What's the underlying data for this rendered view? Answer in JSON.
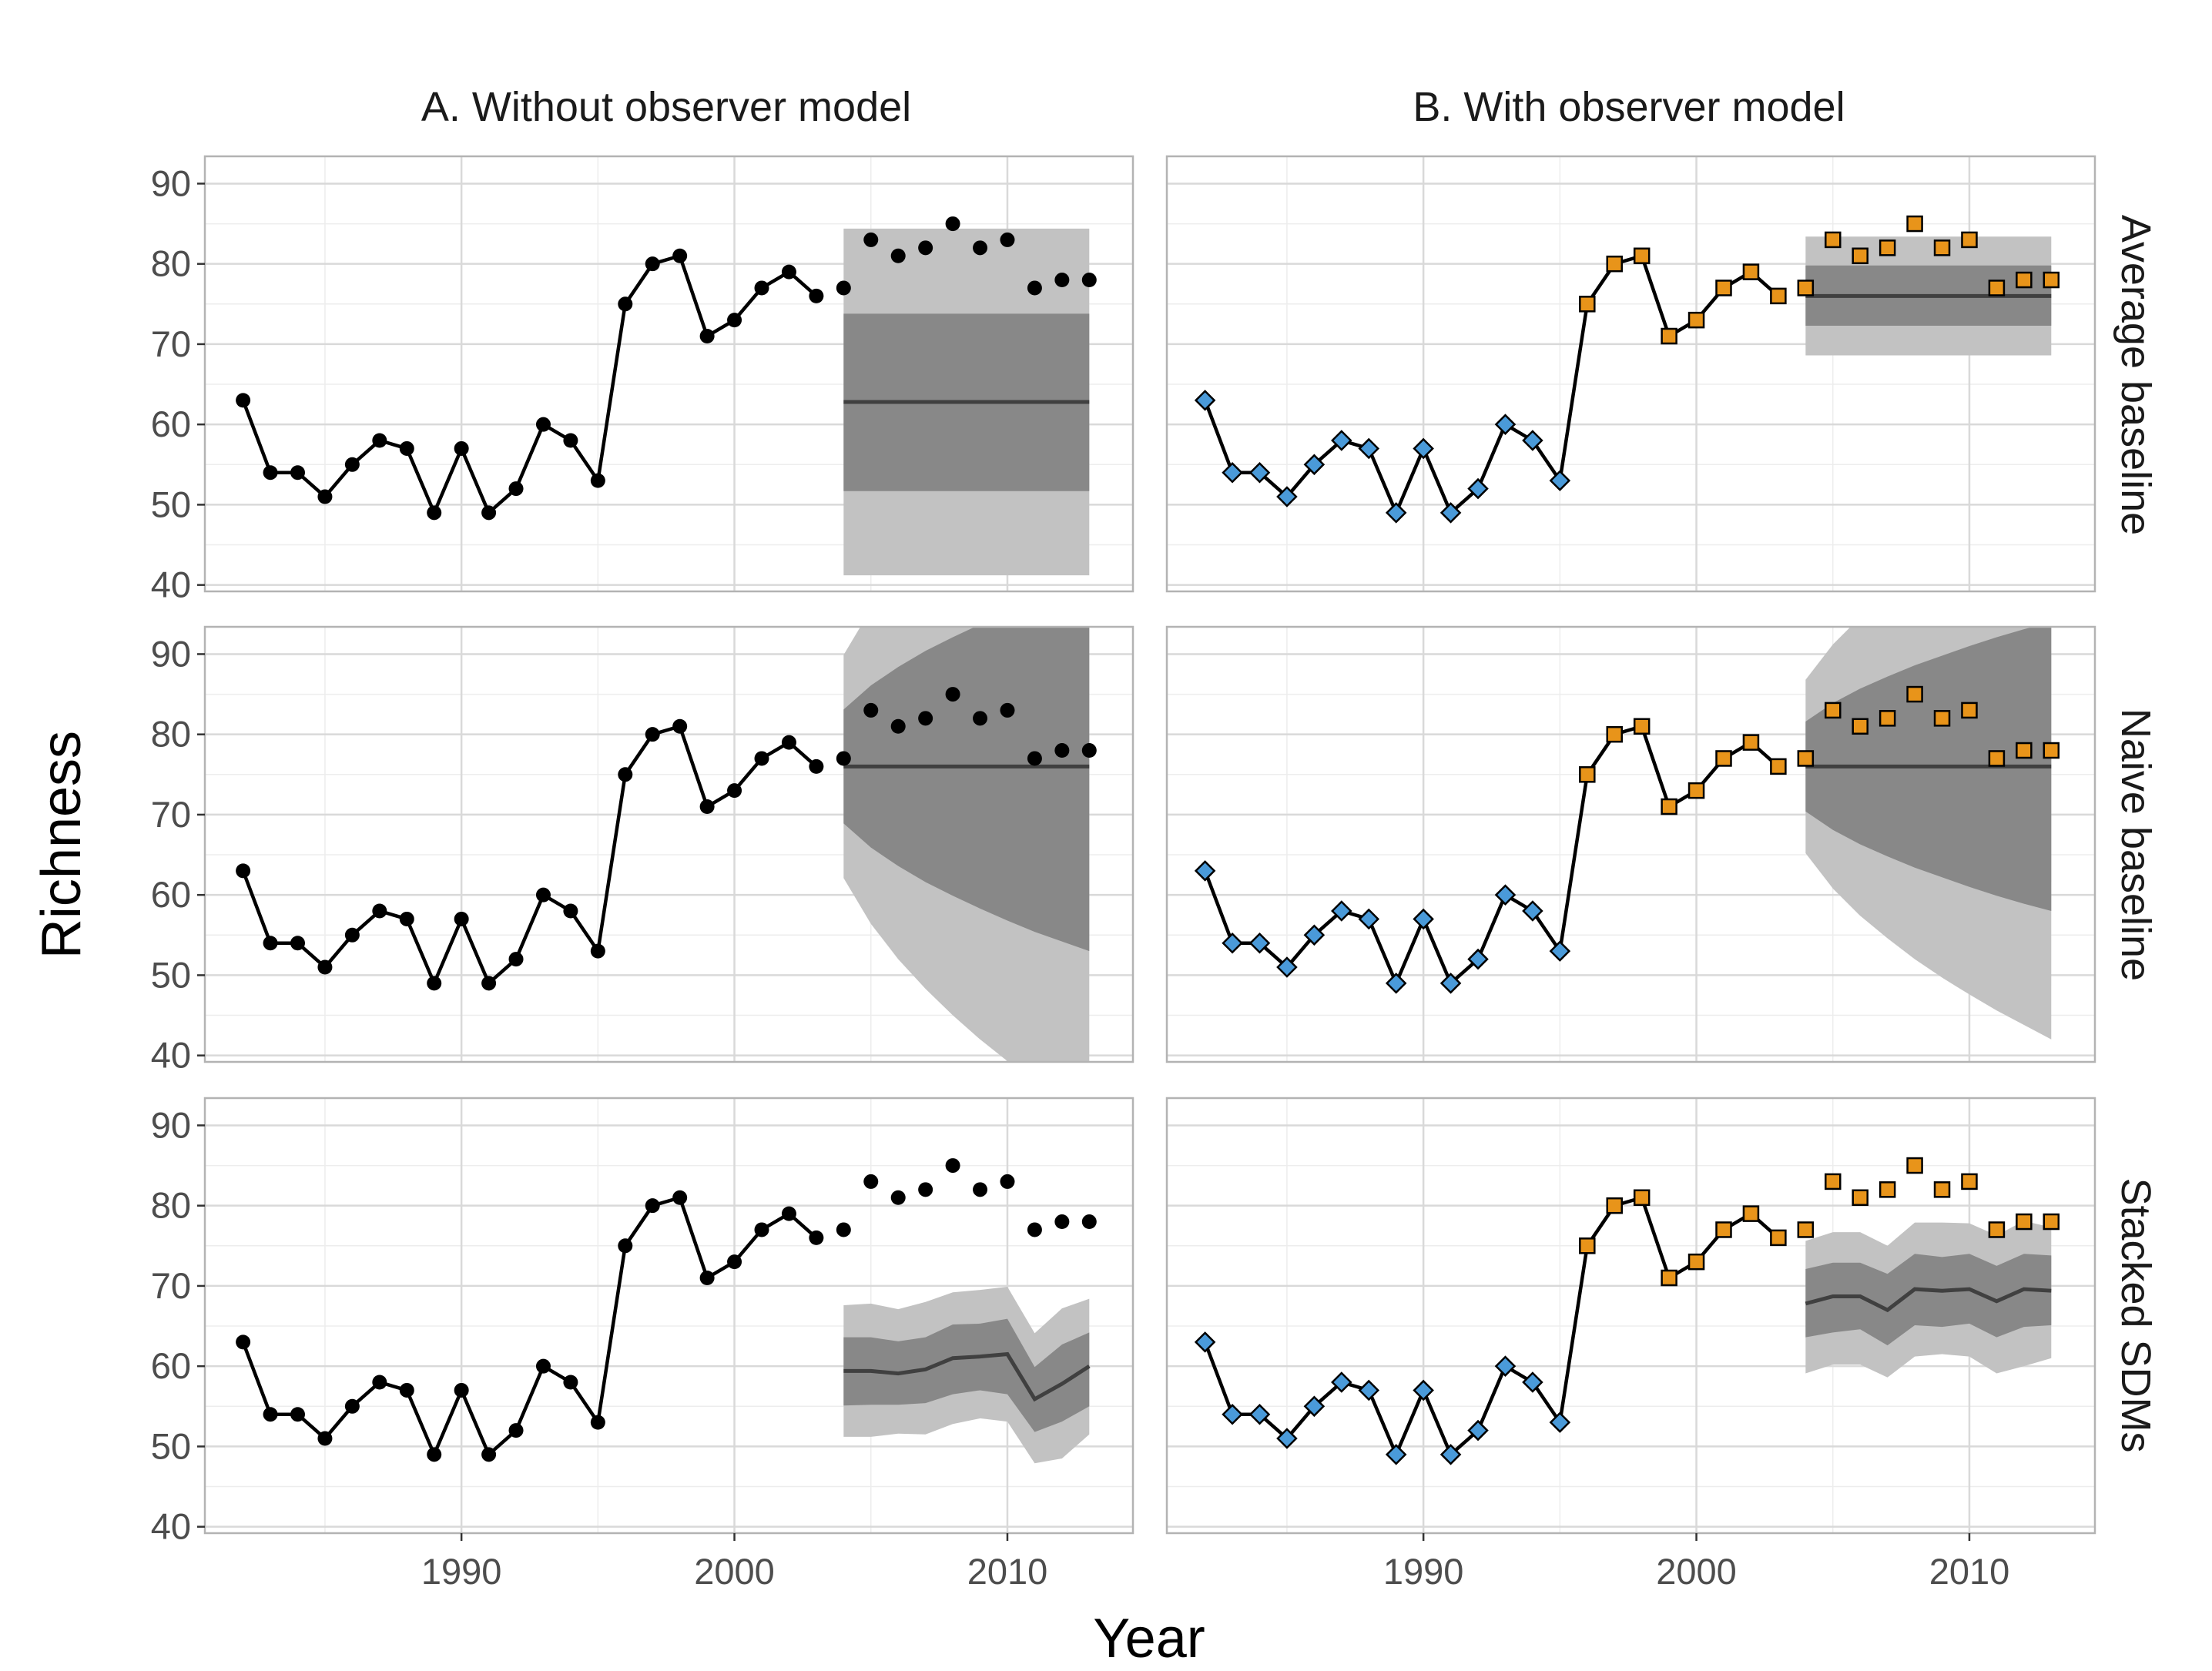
{
  "colors": {
    "band_outer": "#c2c2c2",
    "band_inner": "#888888",
    "median_line": "#404040",
    "line": "#000000",
    "panel_border": "#b3b3b3",
    "grid_major": "#d9d9d9",
    "grid_minor": "#ededed",
    "before_point": "#4a9ad9",
    "after_point": "#e8941a",
    "point_plain": "#000000"
  },
  "labels": {
    "col_a": "A. Without observer model",
    "col_b": "B. With observer model",
    "row_1": "Average baseline",
    "row_2": "Naive baseline",
    "row_3": "Stacked SDMs",
    "xlabel": "Year",
    "ylabel": "Richness"
  },
  "chart_data": {
    "type": "line",
    "layout": "facet-grid-3x2",
    "xlabel": "Year",
    "ylabel": "Richness",
    "xlim": [
      1980.6,
      2014.6
    ],
    "ylim": [
      39.2,
      93.4
    ],
    "x_ticks": [
      1990,
      2000,
      2010
    ],
    "y_ticks": [
      40,
      50,
      60,
      70,
      80,
      90
    ],
    "grid": true,
    "columns": [
      "A. Without observer model",
      "B. With observer model"
    ],
    "rows": [
      "Average baseline",
      "Naive baseline",
      "Stacked SDMs"
    ],
    "observed": {
      "x": [
        1982,
        1983,
        1984,
        1985,
        1986,
        1987,
        1988,
        1989,
        1990,
        1991,
        1992,
        1993,
        1994,
        1995,
        1996,
        1997,
        1998,
        1999,
        2000,
        2001,
        2002,
        2003,
        2004,
        2005,
        2006,
        2007,
        2008,
        2009,
        2010,
        2011,
        2012,
        2013
      ],
      "y": [
        63,
        54,
        54,
        51,
        55,
        58,
        57,
        49,
        57,
        49,
        52,
        60,
        58,
        53,
        75,
        80,
        81,
        71,
        73,
        77,
        79,
        76,
        77,
        83,
        81,
        82,
        85,
        82,
        83,
        77,
        78,
        78
      ],
      "line_end_year": 2003,
      "forecast_start_year": 2004,
      "observer_change_year": 1996
    },
    "forecasts": [
      {
        "row": "Average baseline",
        "column": "A. Without observer model",
        "x": [
          2004,
          2013
        ],
        "median": [
          62.8,
          62.8
        ],
        "inner_low": [
          51.7,
          51.7
        ],
        "inner_high": [
          73.8,
          73.8
        ],
        "outer_low": [
          41.2,
          41.2
        ],
        "outer_high": [
          84.4,
          84.4
        ]
      },
      {
        "row": "Average baseline",
        "column": "B. With observer model",
        "x": [
          2004,
          2013
        ],
        "median": [
          76.0,
          76.0
        ],
        "inner_low": [
          72.3,
          72.3
        ],
        "inner_high": [
          79.8,
          79.8
        ],
        "outer_low": [
          68.6,
          68.6
        ],
        "outer_high": [
          83.4,
          83.4
        ]
      },
      {
        "row": "Naive baseline",
        "column": "A. Without observer model",
        "x": [
          2004,
          2005,
          2006,
          2007,
          2008,
          2009,
          2010,
          2011,
          2012,
          2013
        ],
        "median": [
          76,
          76,
          76,
          76,
          76,
          76,
          76,
          76,
          76,
          76
        ],
        "inner_low": [
          68.9,
          65.9,
          63.6,
          61.6,
          59.9,
          58.3,
          56.8,
          55.4,
          54.2,
          53.0
        ],
        "inner_high": [
          83.1,
          86.1,
          88.4,
          90.4,
          92.1,
          93.7,
          95.2,
          96.6,
          97.8,
          99.0
        ],
        "outer_low": [
          62.1,
          56.4,
          52.0,
          48.3,
          45.0,
          42.0,
          39.3,
          36.7,
          34.3,
          32.0
        ],
        "outer_high": [
          89.9,
          95.6,
          100.0,
          103.7,
          107.0,
          110.0,
          112.7,
          115.3,
          117.7,
          120.0
        ]
      },
      {
        "row": "Naive baseline",
        "column": "B. With observer model",
        "x": [
          2004,
          2005,
          2006,
          2007,
          2008,
          2009,
          2010,
          2011,
          2012,
          2013
        ],
        "median": [
          76,
          76,
          76,
          76,
          76,
          76,
          76,
          76,
          76,
          76
        ],
        "inner_low": [
          70.4,
          68.1,
          66.3,
          64.8,
          63.4,
          62.2,
          61.0,
          59.9,
          58.9,
          58.0
        ],
        "inner_high": [
          81.6,
          83.9,
          85.7,
          87.2,
          88.6,
          89.8,
          91.0,
          92.1,
          93.1,
          94.0
        ],
        "outer_low": [
          65.2,
          60.8,
          57.4,
          54.6,
          52.0,
          49.7,
          47.6,
          45.6,
          43.8,
          42.0
        ],
        "outer_high": [
          86.8,
          91.2,
          94.6,
          97.4,
          100.0,
          102.3,
          104.4,
          106.4,
          108.2,
          110.0
        ]
      },
      {
        "row": "Stacked SDMs",
        "column": "A. Without observer model",
        "x": [
          2004,
          2005,
          2006,
          2007,
          2008,
          2009,
          2010,
          2011,
          2012,
          2013
        ],
        "median": [
          59.4,
          59.4,
          59.1,
          59.6,
          61.0,
          61.2,
          61.5,
          55.9,
          57.8,
          60.0
        ],
        "inner_low": [
          55.1,
          55.2,
          55.2,
          55.4,
          56.5,
          57.0,
          56.5,
          51.8,
          53.1,
          55.0
        ],
        "inner_high": [
          63.6,
          63.6,
          63.1,
          63.6,
          65.2,
          65.3,
          65.9,
          59.9,
          62.7,
          64.2
        ],
        "outer_low": [
          51.2,
          51.2,
          51.6,
          51.5,
          52.8,
          53.5,
          53.1,
          47.9,
          48.5,
          51.5
        ],
        "outer_high": [
          67.6,
          67.8,
          67.1,
          68.0,
          69.2,
          69.5,
          69.9,
          64.1,
          67.2,
          68.4
        ]
      },
      {
        "row": "Stacked SDMs",
        "column": "B. With observer model",
        "x": [
          2004,
          2005,
          2006,
          2007,
          2008,
          2009,
          2010,
          2011,
          2012,
          2013
        ],
        "median": [
          67.8,
          68.7,
          68.7,
          67.0,
          69.6,
          69.4,
          69.6,
          68.1,
          69.6,
          69.4
        ],
        "inner_low": [
          63.6,
          64.2,
          64.6,
          62.6,
          65.1,
          64.9,
          65.3,
          63.6,
          64.9,
          65.1
        ],
        "inner_high": [
          72.1,
          72.9,
          72.9,
          71.5,
          74.0,
          73.6,
          74.0,
          72.5,
          74.0,
          73.8
        ],
        "outer_low": [
          59.1,
          60.2,
          60.2,
          58.6,
          61.2,
          61.5,
          61.2,
          59.1,
          60.0,
          61.0
        ],
        "outer_high": [
          75.6,
          76.7,
          76.7,
          75.0,
          77.9,
          77.9,
          77.8,
          76.3,
          78.1,
          77.3
        ]
      }
    ]
  }
}
